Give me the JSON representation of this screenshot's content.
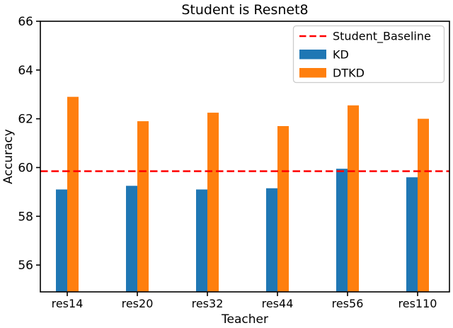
{
  "title": "Student is Resnet8",
  "colors": {
    "kd": "#1f77b4",
    "dtkd": "#ff7f0e",
    "baseline": "#ff0000",
    "axis": "#000000",
    "legend_border": "#cccccc",
    "background": "#ffffff"
  },
  "chart_data": {
    "type": "bar",
    "title": "Student is Resnet8",
    "xlabel": "Teacher",
    "ylabel": "Accuracy",
    "categories": [
      "res14",
      "res20",
      "res32",
      "res44",
      "res56",
      "res110"
    ],
    "series": [
      {
        "name": "KD",
        "color": "#1f77b4",
        "values": [
          59.1,
          59.25,
          59.1,
          59.15,
          59.95,
          59.6
        ]
      },
      {
        "name": "DTKD",
        "color": "#ff7f0e",
        "values": [
          62.9,
          61.9,
          62.25,
          61.7,
          62.55,
          62.0
        ]
      }
    ],
    "baseline": {
      "name": "Student_Baseline",
      "value": 59.85,
      "color": "#ff0000",
      "style": "dashed"
    },
    "ylim": [
      54.9,
      66
    ],
    "yticks": [
      56,
      58,
      60,
      62,
      64,
      66
    ],
    "grid": false,
    "legend": {
      "position": "upper right",
      "entries": [
        "Student_Baseline",
        "KD",
        "DTKD"
      ]
    }
  }
}
